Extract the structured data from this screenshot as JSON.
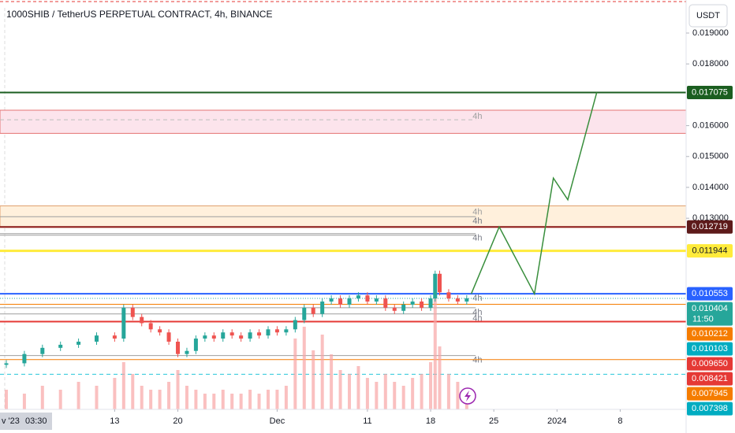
{
  "header": {
    "title": "1000SHIB / TetherUS PERPETUAL CONTRACT, 4h, BINANCE",
    "currency_button": "USDT"
  },
  "chart_data": {
    "type": "candlestick",
    "ylim": [
      0.006806,
      0.020071
    ],
    "yticks": [
      {
        "value": 0.019,
        "label": "0.019000"
      },
      {
        "value": 0.018,
        "label": "0.018000"
      },
      {
        "value": 0.016,
        "label": "0.016000"
      },
      {
        "value": 0.015,
        "label": "0.015000"
      },
      {
        "value": 0.014,
        "label": "0.014000"
      },
      {
        "value": 0.013,
        "label": "0.013000"
      }
    ],
    "xlim": [
      -0.7,
      75.3
    ],
    "xticks": [
      {
        "value": 12,
        "label": "13"
      },
      {
        "value": 19,
        "label": "20"
      },
      {
        "value": 30,
        "label": "Dec"
      },
      {
        "value": 40,
        "label": "11"
      },
      {
        "value": 47,
        "label": "18"
      },
      {
        "value": 54,
        "label": "25"
      },
      {
        "value": 61,
        "label": "2024"
      },
      {
        "value": 68,
        "label": "8"
      }
    ],
    "cursor_date": "v '23",
    "cursor_time": "03:30",
    "price": {
      "up_color": "#26a69a",
      "down_color": "#ef5350",
      "x": [
        0,
        2,
        4,
        6,
        8,
        10,
        12,
        13,
        14,
        15,
        16,
        17,
        18,
        19,
        20,
        21,
        22,
        23,
        24,
        25,
        26,
        27,
        28,
        29,
        30,
        31,
        32,
        33,
        34,
        35,
        36,
        37,
        38,
        39,
        40,
        41,
        42,
        43,
        44,
        45,
        46,
        47,
        47.5,
        48,
        49,
        50,
        51
      ],
      "values": [
        0.0083,
        0.0086,
        0.0088,
        0.0089,
        0.009,
        0.0092,
        0.0091,
        0.0101,
        0.0098,
        0.0096,
        0.0094,
        0.0093,
        0.009,
        0.0086,
        0.0087,
        0.0091,
        0.0092,
        0.0091,
        0.0093,
        0.0092,
        0.0091,
        0.0093,
        0.0092,
        0.0094,
        0.0093,
        0.0094,
        0.0097,
        0.0101,
        0.0099,
        0.0103,
        0.0104,
        0.0102,
        0.0104,
        0.0105,
        0.0103,
        0.0104,
        0.0101,
        0.01,
        0.0102,
        0.0103,
        0.0101,
        0.0104,
        0.0112,
        0.0106,
        0.0104,
        0.0103,
        0.010404
      ]
    },
    "volume": {
      "color": "#f8a5a5",
      "vlim": [
        0,
        3.4
      ],
      "values": [
        0.5,
        0.4,
        0.6,
        0.5,
        0.7,
        0.6,
        0.8,
        1.2,
        0.9,
        0.6,
        0.5,
        0.5,
        0.7,
        1.0,
        0.6,
        0.5,
        0.4,
        0.4,
        0.5,
        0.4,
        0.4,
        0.5,
        0.4,
        0.5,
        0.5,
        0.6,
        1.8,
        2.1,
        1.5,
        1.9,
        1.4,
        1.0,
        0.9,
        1.1,
        0.8,
        0.7,
        0.9,
        0.7,
        0.6,
        0.8,
        0.9,
        1.2,
        3.0,
        1.6,
        0.9,
        0.7,
        0.5
      ]
    },
    "projection": {
      "color": "#388e3c",
      "x": [
        51.5,
        54.6,
        58.5,
        60.6,
        62.2,
        65.4
      ],
      "values": [
        0.01055,
        0.01272,
        0.01055,
        0.0143,
        0.0136,
        0.017075
      ]
    },
    "zones": [
      {
        "from": 0.01575,
        "to": 0.0165,
        "color": "#fce4ec",
        "border": "#e57373",
        "label": "4h"
      },
      {
        "from": 0.0127,
        "to": 0.0134,
        "color": "#fff0dc",
        "border": "#e0a070",
        "label": "4h"
      }
    ],
    "levels": [
      {
        "value": 0.01305,
        "color": "#9e9e9e",
        "x_end": 52,
        "label": "4h"
      },
      {
        "value": 0.0125,
        "color": "#9e9e9e",
        "x_end": 52,
        "label": "4h"
      },
      {
        "value": 0.01245,
        "color": "#9e9e9e",
        "x_end": 52
      },
      {
        "value": 0.01619,
        "color": "#bdbdbd",
        "x_end": 52,
        "style": "dashed"
      },
      {
        "value": 0.0099,
        "color": "#9e9e9e",
        "x_end": 52,
        "label": "4h"
      },
      {
        "value": 0.00855,
        "color": "#9e9e9e",
        "x_end": 52,
        "label": "4h"
      },
      {
        "value": 0.0101,
        "color": "#9e9e9e",
        "x_end": 52,
        "label": "4h"
      },
      {
        "value": 0.017075,
        "color": "#1b5e20",
        "width": 2
      },
      {
        "value": 0.012719,
        "color": "#8b1a1a",
        "width": 2
      },
      {
        "value": 0.011944,
        "color": "#ffeb3b",
        "width": 3
      },
      {
        "value": 0.010553,
        "color": "#2962ff",
        "width": 2,
        "label": "4h"
      },
      {
        "value": 0.010212,
        "color": "#f57c00",
        "width": 1
      },
      {
        "value": 0.00965,
        "color": "#e53935",
        "width": 2
      },
      {
        "value": 0.008421,
        "color": "#f57c00",
        "width": 1
      },
      {
        "value": 0.007945,
        "color": "#26c6da",
        "width": 1,
        "style": "dashed"
      },
      {
        "value": 0.010404,
        "color": "#26a69a",
        "width": 1,
        "style": "dotted"
      }
    ],
    "price_labels": [
      {
        "value": 0.017075,
        "label": "0.017075",
        "color": "#1b5e20",
        "text_color": "#ffffff"
      },
      {
        "value": 0.012719,
        "label": "0.012719",
        "color": "#5d1a1a",
        "text_color": "#ffffff"
      },
      {
        "value": 0.011944,
        "label": "0.011944",
        "color": "#ffeb3b",
        "text_color": "#131722"
      },
      {
        "value": 0.010553,
        "label": "0.010553",
        "color": "#2962ff",
        "text_color": "#ffffff"
      },
      {
        "value": 0.010404,
        "label": "0.010404",
        "color": "#26a69a",
        "text_color": "#ffffff",
        "countdown": "11:50"
      },
      {
        "value": 0.010212,
        "label": "0.010212",
        "color": "#f57c00",
        "text_color": "#ffffff"
      },
      {
        "value": 0.010103,
        "label": "0.010103",
        "color": "#00acc1",
        "text_color": "#ffffff"
      },
      {
        "value": 0.00965,
        "label": "0.009650",
        "color": "#e53935",
        "text_color": "#ffffff"
      },
      {
        "value": 0.008421,
        "label": "0.008421",
        "color": "#e53935",
        "text_color": "#ffffff"
      },
      {
        "value": 0.007945,
        "label": "0.007945",
        "color": "#f57c00",
        "text_color": "#ffffff"
      },
      {
        "value": 0.007398,
        "label": "0.007398",
        "color": "#00acc1",
        "text_color": "#ffffff"
      }
    ]
  }
}
